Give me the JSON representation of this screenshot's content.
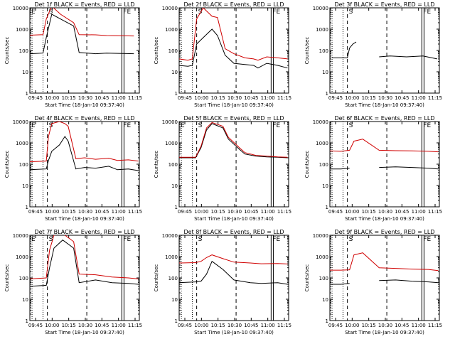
{
  "chart_data": [
    {
      "type": "line",
      "title": "Det 1f BLACK = Events, RED = LLD",
      "xlabel": "Start Time (18-Jan-10 09:37:40)",
      "ylabel": "Counts/sec",
      "ylog": true,
      "ylim": [
        1,
        10000
      ],
      "xlim": [
        0,
        100
      ],
      "x_ticks": [
        "09:45",
        "10:00",
        "10:15",
        "10:30",
        "10:45",
        "11:00",
        "11:15"
      ],
      "y_ticks": [
        "1",
        "10",
        "100",
        "1000",
        "10000"
      ],
      "markers": [
        "E",
        "S",
        "FE"
      ],
      "series": [
        {
          "name": "Events",
          "color": "#000000",
          "x": [
            0,
            12,
            15,
            20,
            28,
            40,
            45,
            60,
            70,
            95
          ],
          "values": [
            70,
            75,
            400,
            5000,
            3000,
            1400,
            80,
            70,
            75,
            70
          ]
        },
        {
          "name": "LLD",
          "color": "#d00000",
          "x": [
            0,
            12,
            15,
            20,
            28,
            40,
            45,
            60,
            70,
            95
          ],
          "values": [
            520,
            550,
            3000,
            12000,
            5000,
            2000,
            550,
            540,
            500,
            480
          ]
        }
      ]
    },
    {
      "type": "line",
      "title": "Det 2f BLACK = Events, RED = LLD",
      "xlabel": "Start Time (18-Jan-10 09:37:40)",
      "ylabel": "Counts/sec",
      "ylog": true,
      "ylim": [
        1,
        10000
      ],
      "xlim": [
        0,
        100
      ],
      "x_ticks": [
        "09:45",
        "10:00",
        "10:15",
        "10:30",
        "10:45",
        "11:00",
        "11:15"
      ],
      "y_ticks": [
        "1",
        "10",
        "100",
        "1000",
        "10000"
      ],
      "markers": [
        "S",
        "FE"
      ],
      "series": [
        {
          "name": "Events",
          "color": "#000000",
          "x": [
            0,
            8,
            12,
            16,
            22,
            30,
            35,
            42,
            50,
            60,
            68,
            72,
            80,
            90,
            99
          ],
          "values": [
            20,
            18,
            20,
            200,
            400,
            1000,
            500,
            60,
            25,
            22,
            20,
            15,
            25,
            20,
            15
          ]
        },
        {
          "name": "LLD",
          "color": "#d00000",
          "x": [
            0,
            8,
            12,
            16,
            22,
            30,
            35,
            42,
            50,
            60,
            68,
            72,
            80,
            90,
            99
          ],
          "values": [
            40,
            35,
            40,
            3000,
            10000,
            4000,
            3500,
            120,
            70,
            45,
            40,
            35,
            50,
            45,
            40
          ]
        }
      ]
    },
    {
      "type": "line",
      "title": "Det 3f BLACK = Events, RED = LLD",
      "xlabel": "Start Time (18-Jan-10 09:37:40)",
      "ylabel": "Counts/sec",
      "ylog": true,
      "ylim": [
        1,
        10000
      ],
      "xlim": [
        0,
        100
      ],
      "x_ticks": [
        "09:45",
        "10:00",
        "10:15",
        "10:30",
        "10:45",
        "11:00",
        "11:15"
      ],
      "y_ticks": [
        "1",
        "10",
        "100",
        "1000",
        "10000"
      ],
      "markers": [
        "S",
        "FE"
      ],
      "series": [
        {
          "name": "Events",
          "color": "#000000",
          "x": [
            2,
            10,
            16,
            18,
            21,
            24,
            40,
            45,
            55,
            70,
            85,
            98
          ],
          "values": [
            45,
            45,
            45,
            130,
            200,
            250,
            null,
            50,
            55,
            50,
            55,
            40
          ]
        }
      ]
    },
    {
      "type": "line",
      "title": "Det 4f BLACK = Events, RED = LLD",
      "xlabel": "Start Time (18-Jan-10 09:37:40)",
      "ylabel": "Counts/sec",
      "ylog": true,
      "ylim": [
        1,
        10000
      ],
      "xlim": [
        0,
        100
      ],
      "x_ticks": [
        "09:45",
        "10:00",
        "10:15",
        "10:30",
        "10:45",
        "11:00",
        "11:15"
      ],
      "y_ticks": [
        "1",
        "10",
        "100",
        "1000",
        "10000"
      ],
      "markers": [
        "E",
        "S",
        "FE"
      ],
      "series": [
        {
          "name": "Events",
          "color": "#000000",
          "x": [
            0,
            15,
            17,
            20,
            27,
            32,
            35,
            42,
            50,
            60,
            72,
            80,
            90,
            99
          ],
          "values": [
            55,
            60,
            150,
            400,
            800,
            2000,
            1200,
            60,
            70,
            65,
            80,
            55,
            60,
            50
          ]
        },
        {
          "name": "LLD",
          "color": "#d00000",
          "x": [
            0,
            15,
            17,
            20,
            27,
            32,
            35,
            42,
            50,
            60,
            72,
            80,
            90,
            99
          ],
          "values": [
            130,
            140,
            2000,
            8000,
            10000,
            8000,
            6000,
            180,
            200,
            170,
            190,
            150,
            160,
            140
          ]
        }
      ]
    },
    {
      "type": "line",
      "title": "Det 5f BLACK = Events, RED = LLD",
      "xlabel": "Start Time (18-Jan-10 09:37:40)",
      "ylabel": "Counts/sec",
      "ylog": true,
      "ylim": [
        1,
        10000
      ],
      "xlim": [
        0,
        100
      ],
      "x_ticks": [
        "09:45",
        "10:00",
        "10:15",
        "10:30",
        "10:45",
        "11:00",
        "11:15"
      ],
      "y_ticks": [
        "1",
        "10",
        "100",
        "1000",
        "10000"
      ],
      "markers": [
        "E",
        "S",
        "FE"
      ],
      "series": [
        {
          "name": "Events",
          "color": "#000000",
          "x": [
            0,
            15,
            20,
            25,
            30,
            40,
            45,
            55,
            60,
            70,
            80,
            90,
            99
          ],
          "values": [
            200,
            200,
            600,
            4000,
            8000,
            5000,
            1500,
            500,
            300,
            240,
            220,
            210,
            200
          ]
        },
        {
          "name": "LLD",
          "color": "#d00000",
          "x": [
            0,
            15,
            20,
            25,
            30,
            40,
            45,
            55,
            60,
            70,
            80,
            90,
            99
          ],
          "values": [
            210,
            210,
            700,
            5000,
            9000,
            6000,
            1800,
            600,
            350,
            260,
            240,
            220,
            210
          ]
        }
      ]
    },
    {
      "type": "line",
      "title": "Det 6f BLACK = Events, RED = LLD",
      "xlabel": "Start Time (18-Jan-10 09:37:40)",
      "ylabel": "Counts/sec",
      "ylog": true,
      "ylim": [
        1,
        10000
      ],
      "xlim": [
        0,
        100
      ],
      "x_ticks": [
        "09:45",
        "10:00",
        "10:15",
        "10:30",
        "10:45",
        "11:00",
        "11:15"
      ],
      "y_ticks": [
        "1",
        "10",
        "100",
        "1000",
        "10000"
      ],
      "markers": [
        "S",
        "FE"
      ],
      "series": [
        {
          "name": "Events",
          "color": "#000000",
          "x": [
            0,
            10,
            18,
            22,
            30,
            45,
            60,
            75,
            90,
            99
          ],
          "values": [
            60,
            60,
            65,
            null,
            null,
            70,
            75,
            70,
            65,
            60
          ]
        },
        {
          "name": "LLD",
          "color": "#d00000",
          "x": [
            0,
            10,
            18,
            22,
            30,
            45,
            60,
            75,
            90,
            99
          ],
          "values": [
            420,
            400,
            450,
            1200,
            1500,
            450,
            430,
            420,
            400,
            380
          ]
        }
      ]
    },
    {
      "type": "line",
      "title": "Det 7f BLACK = Events, RED = LLD",
      "xlabel": "Start Time (18-Jan-10 09:37:40)",
      "ylabel": "Counts/sec",
      "ylog": true,
      "ylim": [
        1,
        10000
      ],
      "xlim": [
        0,
        100
      ],
      "x_ticks": [
        "09:45",
        "10:00",
        "10:15",
        "10:30",
        "10:45",
        "11:00",
        "11:15"
      ],
      "y_ticks": [
        "1",
        "10",
        "100",
        "1000",
        "10000"
      ],
      "markers": [
        "E",
        "S",
        "FE"
      ],
      "series": [
        {
          "name": "Events",
          "color": "#000000",
          "x": [
            0,
            15,
            18,
            22,
            30,
            40,
            45,
            60,
            75,
            90,
            99
          ],
          "values": [
            40,
            45,
            300,
            2500,
            6000,
            2500,
            60,
            80,
            60,
            55,
            50
          ]
        },
        {
          "name": "LLD",
          "color": "#d00000",
          "x": [
            0,
            15,
            18,
            22,
            30,
            40,
            45,
            60,
            75,
            90,
            99
          ],
          "values": [
            90,
            100,
            2000,
            10000,
            12000,
            5000,
            150,
            140,
            110,
            100,
            90
          ]
        }
      ]
    },
    {
      "type": "line",
      "title": "Det 8f BLACK = Events, RED = LLD",
      "xlabel": "Start Time (18-Jan-10 09:37:40)",
      "ylabel": "Counts/sec",
      "ylog": true,
      "ylim": [
        1,
        10000
      ],
      "xlim": [
        0,
        100
      ],
      "x_ticks": [
        "09:45",
        "10:00",
        "10:15",
        "10:30",
        "10:45",
        "11:00",
        "11:15"
      ],
      "y_ticks": [
        "1",
        "10",
        "100",
        "1000",
        "10000"
      ],
      "markers": [
        "S",
        "FE"
      ],
      "series": [
        {
          "name": "Events",
          "color": "#000000",
          "x": [
            0,
            15,
            20,
            25,
            30,
            40,
            50,
            65,
            75,
            90,
            99
          ],
          "values": [
            60,
            65,
            70,
            150,
            600,
            250,
            80,
            60,
            55,
            60,
            50
          ]
        },
        {
          "name": "LLD",
          "color": "#d00000",
          "x": [
            0,
            15,
            20,
            25,
            30,
            40,
            50,
            65,
            75,
            90,
            99
          ],
          "values": [
            500,
            520,
            600,
            900,
            1200,
            800,
            550,
            500,
            460,
            470,
            450
          ]
        }
      ]
    },
    {
      "type": "line",
      "title": "Det 9f BLACK = Events, RED = LLD",
      "xlabel": "Start Time (18-Jan-10 09:37:40)",
      "ylabel": "Counts/sec",
      "ylog": true,
      "ylim": [
        1,
        10000
      ],
      "xlim": [
        0,
        100
      ],
      "x_ticks": [
        "09:45",
        "10:00",
        "10:15",
        "10:30",
        "10:45",
        "11:00",
        "11:15"
      ],
      "y_ticks": [
        "1",
        "10",
        "100",
        "1000",
        "10000"
      ],
      "markers": [
        "S",
        "FE"
      ],
      "series": [
        {
          "name": "Events",
          "color": "#000000",
          "x": [
            0,
            10,
            18,
            22,
            30,
            45,
            60,
            75,
            90,
            99
          ],
          "values": [
            50,
            50,
            55,
            null,
            null,
            75,
            80,
            70,
            65,
            60
          ]
        },
        {
          "name": "LLD",
          "color": "#d00000",
          "x": [
            0,
            10,
            18,
            22,
            30,
            45,
            60,
            75,
            90,
            99
          ],
          "values": [
            230,
            230,
            240,
            1200,
            1500,
            300,
            280,
            260,
            250,
            220
          ]
        }
      ]
    }
  ]
}
